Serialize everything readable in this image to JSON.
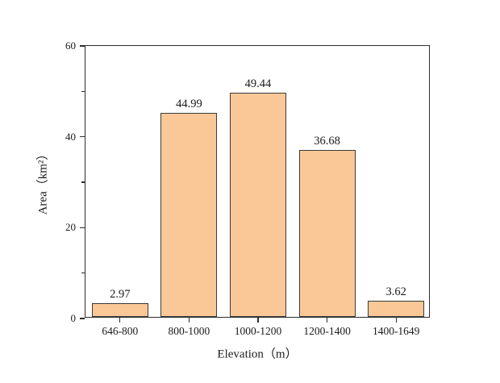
{
  "figure": {
    "background": "#ffffff"
  },
  "chart_data": {
    "type": "bar",
    "title": "",
    "categories": [
      "646-800",
      "800-1000",
      "1000-1200",
      "1200-1400",
      "1400-1649"
    ],
    "values": [
      2.97,
      44.99,
      49.44,
      36.68,
      3.62
    ],
    "bar_labels": [
      "2.97",
      "44.99",
      "49.44",
      "36.68",
      "3.62"
    ],
    "xlabel": "Elevation（m）",
    "ylabel": "Area（km²）",
    "ylim": [
      0,
      60
    ],
    "y_major_ticks": [
      0,
      20,
      40,
      60
    ],
    "y_minor_ticks": [
      10,
      30,
      50
    ],
    "grid": false,
    "legend": "none",
    "colors": {
      "bar_fill": "#FAC897",
      "bar_border": "#3a3a3a",
      "axis": "#2e2e2e",
      "text": "#1a1a1a"
    }
  }
}
